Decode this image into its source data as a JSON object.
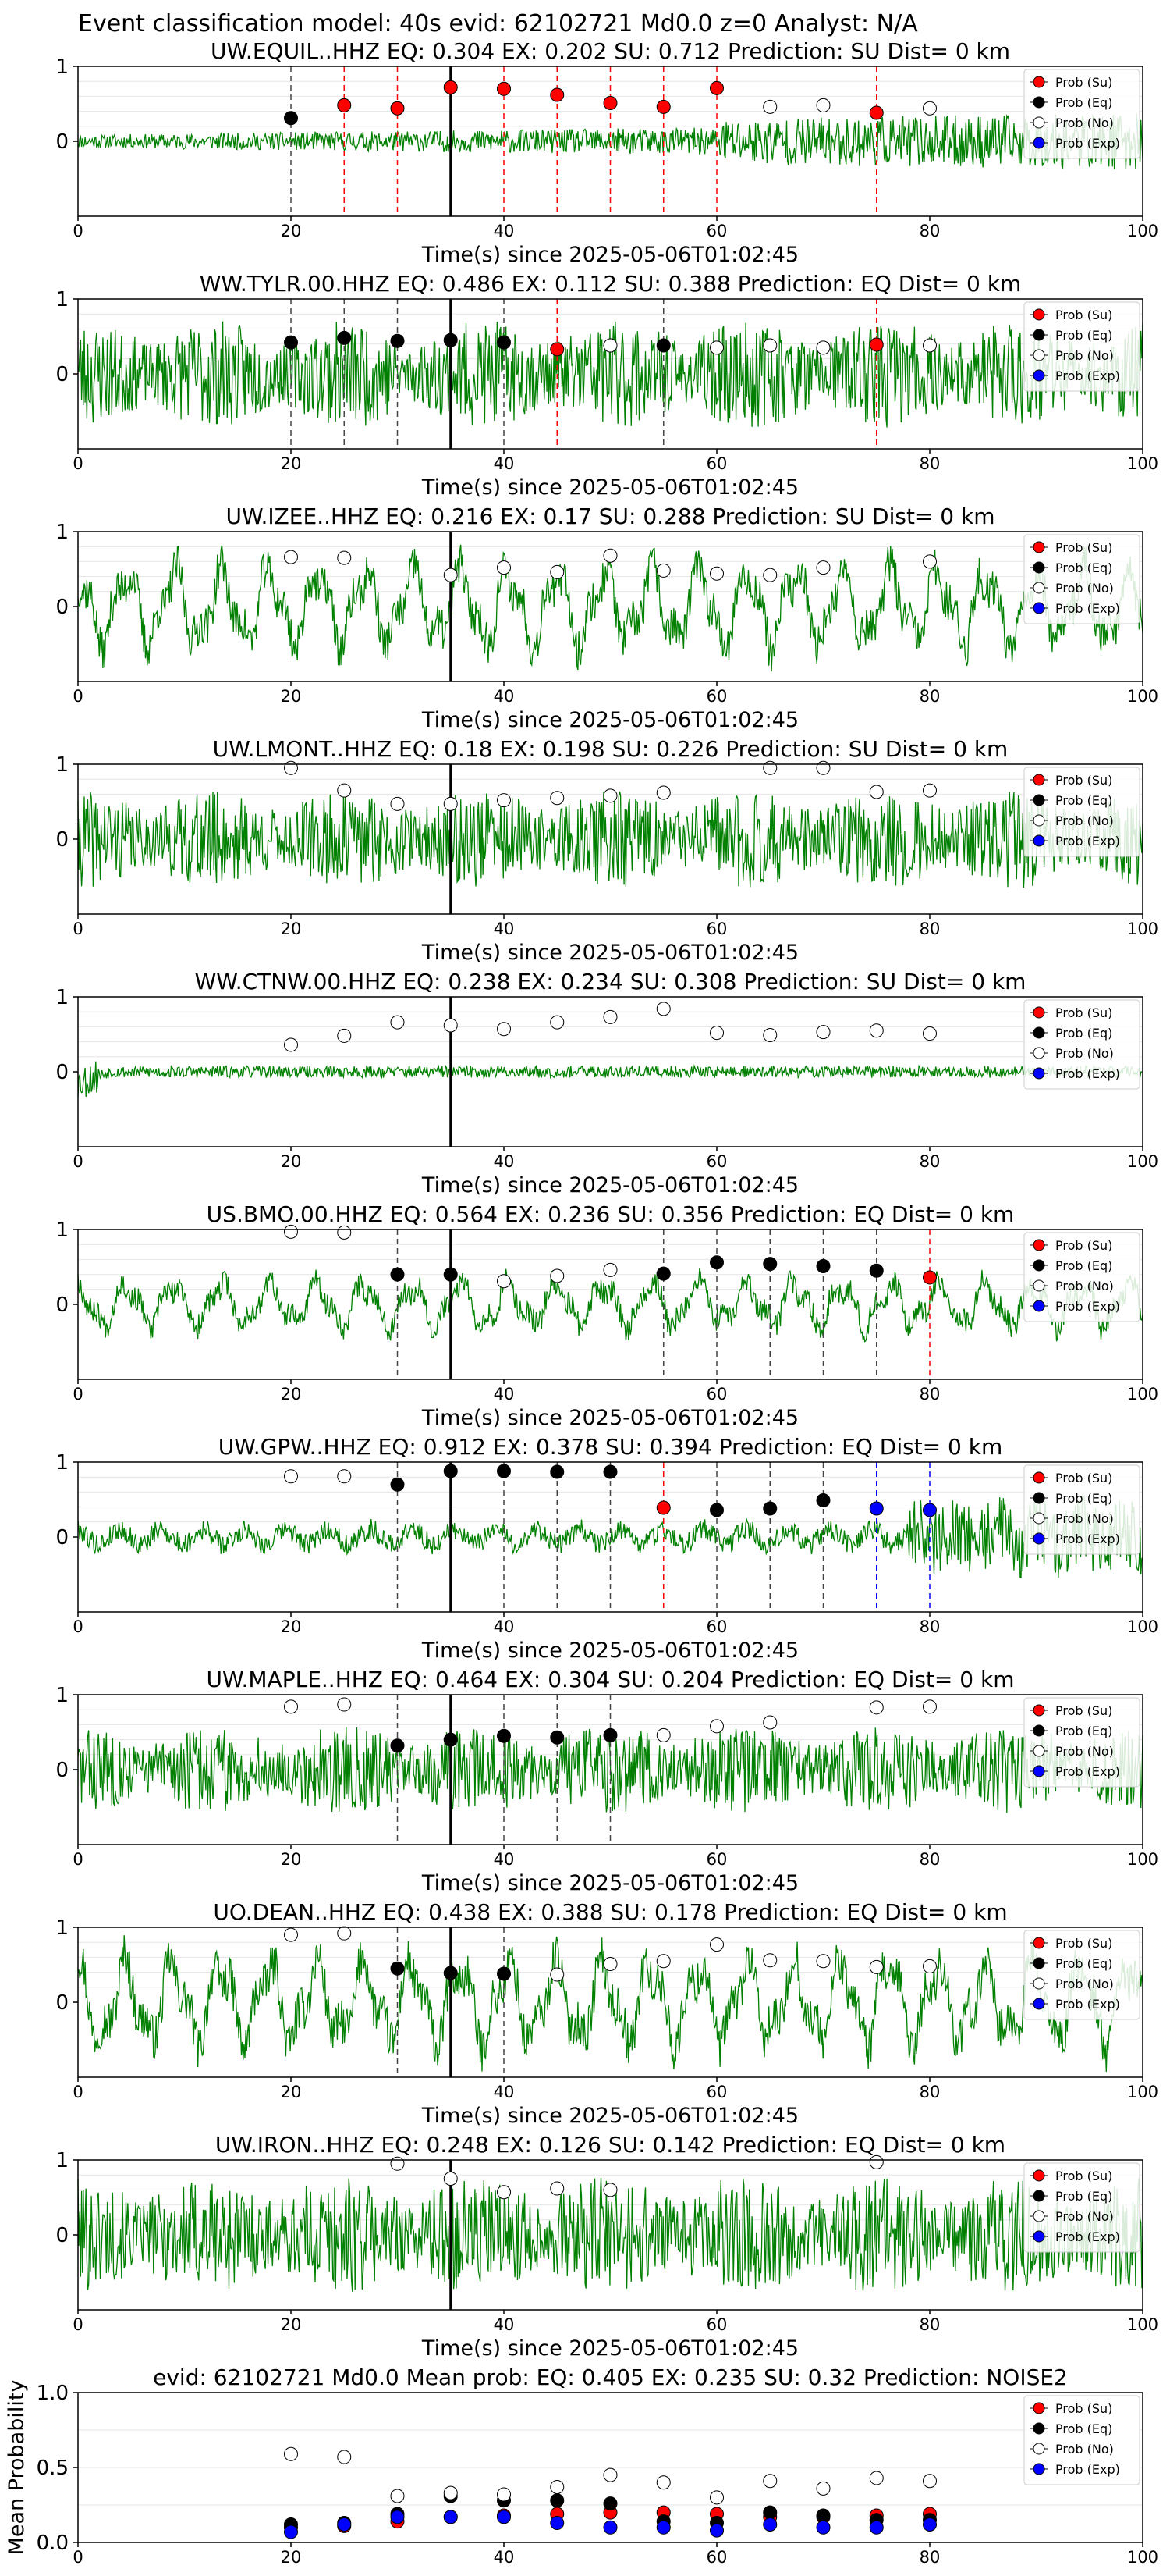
{
  "page_title": "Event classification model: 40s evid: 62102721 Md0.0 z=0 Analyst: N/A",
  "legend_labels": [
    "Prob (Su)",
    "Prob (Eq)",
    "Prob (No)",
    "Prob (Exp)"
  ],
  "colors": {
    "waveform": "#008000",
    "su": "#ff0000",
    "eq": "#000000",
    "no": "#ffffff",
    "exp": "#0000ff",
    "grid": "#e6e6e6",
    "pick_line": "#000000"
  },
  "chart_data": [
    {
      "type": "line",
      "station": "UW.EQUIL..HHZ",
      "title": "UW.EQUIL..HHZ   EQ: 0.304   EX: 0.202   SU: 0.712   Prediction: SU    Dist= 0 km",
      "xlabel": "Time(s) since 2025-05-06T01:02:45",
      "xlim": [
        0,
        100
      ],
      "ylim": [
        -1,
        1
      ],
      "xticks": [
        "0",
        "20",
        "40",
        "60",
        "80",
        "100"
      ],
      "yticks": [
        "1",
        "0"
      ],
      "pick_time": 35,
      "amplitude": 0.25,
      "style": "burst",
      "seed": 11,
      "markers": [
        {
          "t": 20,
          "p": 0.31,
          "c": "eq"
        },
        {
          "t": 25,
          "p": 0.48,
          "c": "su"
        },
        {
          "t": 30,
          "p": 0.44,
          "c": "su"
        },
        {
          "t": 35,
          "p": 0.72,
          "c": "su"
        },
        {
          "t": 40,
          "p": 0.7,
          "c": "su"
        },
        {
          "t": 45,
          "p": 0.62,
          "c": "su"
        },
        {
          "t": 50,
          "p": 0.51,
          "c": "su"
        },
        {
          "t": 55,
          "p": 0.46,
          "c": "su"
        },
        {
          "t": 60,
          "p": 0.71,
          "c": "su"
        },
        {
          "t": 65,
          "p": 0.46,
          "c": "no"
        },
        {
          "t": 70,
          "p": 0.48,
          "c": "no"
        },
        {
          "t": 75,
          "p": 0.38,
          "c": "su"
        },
        {
          "t": 80,
          "p": 0.44,
          "c": "no"
        }
      ]
    },
    {
      "type": "line",
      "station": "WW.TYLR.00.HHZ",
      "title": "WW.TYLR.00.HHZ   EQ: 0.486   EX: 0.112   SU: 0.388   Prediction: EQ    Dist= 0 km",
      "xlabel": "Time(s) since 2025-05-06T01:02:45",
      "xlim": [
        0,
        100
      ],
      "ylim": [
        -1,
        1
      ],
      "xticks": [
        "0",
        "20",
        "40",
        "60",
        "80",
        "100"
      ],
      "yticks": [
        "1",
        "0"
      ],
      "pick_time": 35,
      "amplitude": 0.55,
      "style": "noisy",
      "seed": 23,
      "markers": [
        {
          "t": 20,
          "p": 0.42,
          "c": "eq"
        },
        {
          "t": 25,
          "p": 0.48,
          "c": "eq"
        },
        {
          "t": 30,
          "p": 0.44,
          "c": "eq"
        },
        {
          "t": 35,
          "p": 0.45,
          "c": "eq"
        },
        {
          "t": 40,
          "p": 0.42,
          "c": "eq"
        },
        {
          "t": 45,
          "p": 0.33,
          "c": "su"
        },
        {
          "t": 50,
          "p": 0.38,
          "c": "no"
        },
        {
          "t": 55,
          "p": 0.38,
          "c": "eq"
        },
        {
          "t": 60,
          "p": 0.35,
          "c": "no"
        },
        {
          "t": 65,
          "p": 0.38,
          "c": "no"
        },
        {
          "t": 70,
          "p": 0.35,
          "c": "no"
        },
        {
          "t": 75,
          "p": 0.39,
          "c": "su"
        },
        {
          "t": 80,
          "p": 0.38,
          "c": "no"
        }
      ]
    },
    {
      "type": "line",
      "station": "UW.IZEE..HHZ",
      "title": "UW.IZEE..HHZ   EQ: 0.216   EX: 0.17   SU: 0.288   Prediction: SU    Dist= 0 km",
      "xlabel": "Time(s) since 2025-05-06T01:02:45",
      "xlim": [
        0,
        100
      ],
      "ylim": [
        -1,
        1
      ],
      "xticks": [
        "0",
        "20",
        "40",
        "60",
        "80",
        "100"
      ],
      "yticks": [
        "1",
        "0"
      ],
      "pick_time": 35,
      "amplitude": 0.6,
      "style": "wavy",
      "seed": 37,
      "markers": [
        {
          "t": 20,
          "p": 0.66,
          "c": "no"
        },
        {
          "t": 25,
          "p": 0.65,
          "c": "no"
        },
        {
          "t": 35,
          "p": 0.42,
          "c": "no"
        },
        {
          "t": 40,
          "p": 0.52,
          "c": "no"
        },
        {
          "t": 45,
          "p": 0.46,
          "c": "no"
        },
        {
          "t": 50,
          "p": 0.68,
          "c": "no"
        },
        {
          "t": 55,
          "p": 0.48,
          "c": "no"
        },
        {
          "t": 60,
          "p": 0.44,
          "c": "no"
        },
        {
          "t": 65,
          "p": 0.42,
          "c": "no"
        },
        {
          "t": 70,
          "p": 0.52,
          "c": "no"
        },
        {
          "t": 80,
          "p": 0.6,
          "c": "no"
        }
      ]
    },
    {
      "type": "line",
      "station": "UW.LMONT..HHZ",
      "title": "UW.LMONT..HHZ   EQ: 0.18   EX: 0.198   SU: 0.226   Prediction: SU    Dist= 0 km",
      "xlabel": "Time(s) since 2025-05-06T01:02:45",
      "xlim": [
        0,
        100
      ],
      "ylim": [
        -1,
        1
      ],
      "xticks": [
        "0",
        "20",
        "40",
        "60",
        "80",
        "100"
      ],
      "yticks": [
        "1",
        "0"
      ],
      "pick_time": 35,
      "amplitude": 0.5,
      "style": "noisy",
      "seed": 41,
      "markers": [
        {
          "t": 20,
          "p": 0.95,
          "c": "no"
        },
        {
          "t": 25,
          "p": 0.65,
          "c": "no"
        },
        {
          "t": 30,
          "p": 0.47,
          "c": "no"
        },
        {
          "t": 35,
          "p": 0.47,
          "c": "no"
        },
        {
          "t": 40,
          "p": 0.52,
          "c": "no"
        },
        {
          "t": 45,
          "p": 0.55,
          "c": "no"
        },
        {
          "t": 50,
          "p": 0.58,
          "c": "no"
        },
        {
          "t": 55,
          "p": 0.62,
          "c": "no"
        },
        {
          "t": 65,
          "p": 0.95,
          "c": "no"
        },
        {
          "t": 70,
          "p": 0.95,
          "c": "no"
        },
        {
          "t": 75,
          "p": 0.63,
          "c": "no"
        },
        {
          "t": 80,
          "p": 0.65,
          "c": "no"
        }
      ]
    },
    {
      "type": "line",
      "station": "WW.CTNW.00.HHZ",
      "title": "WW.CTNW.00.HHZ   EQ: 0.238   EX: 0.234   SU: 0.308   Prediction: SU    Dist= 0 km",
      "xlabel": "Time(s) since 2025-05-06T01:02:45",
      "xlim": [
        0,
        100
      ],
      "ylim": [
        -1,
        1
      ],
      "xticks": [
        "0",
        "20",
        "40",
        "60",
        "80",
        "100"
      ],
      "yticks": [
        "1",
        "0"
      ],
      "pick_time": 35,
      "amplitude": 0.08,
      "style": "quiet",
      "seed": 53,
      "markers": [
        {
          "t": 20,
          "p": 0.36,
          "c": "no"
        },
        {
          "t": 25,
          "p": 0.48,
          "c": "no"
        },
        {
          "t": 30,
          "p": 0.66,
          "c": "no"
        },
        {
          "t": 35,
          "p": 0.62,
          "c": "no"
        },
        {
          "t": 40,
          "p": 0.57,
          "c": "no"
        },
        {
          "t": 45,
          "p": 0.66,
          "c": "no"
        },
        {
          "t": 50,
          "p": 0.73,
          "c": "no"
        },
        {
          "t": 55,
          "p": 0.84,
          "c": "no"
        },
        {
          "t": 60,
          "p": 0.52,
          "c": "no"
        },
        {
          "t": 65,
          "p": 0.49,
          "c": "no"
        },
        {
          "t": 70,
          "p": 0.53,
          "c": "no"
        },
        {
          "t": 75,
          "p": 0.55,
          "c": "no"
        },
        {
          "t": 80,
          "p": 0.51,
          "c": "no"
        }
      ]
    },
    {
      "type": "line",
      "station": "US.BMO.00.HHZ",
      "title": "US.BMO.00.HHZ   EQ: 0.564   EX: 0.236   SU: 0.356   Prediction: EQ    Dist= 0 km",
      "xlabel": "Time(s) since 2025-05-06T01:02:45",
      "xlim": [
        0,
        100
      ],
      "ylim": [
        -1,
        1
      ],
      "xticks": [
        "0",
        "20",
        "40",
        "60",
        "80",
        "100"
      ],
      "yticks": [
        "1",
        "0"
      ],
      "pick_time": 35,
      "amplitude": 0.35,
      "style": "wavy",
      "seed": 67,
      "markers": [
        {
          "t": 20,
          "p": 0.97,
          "c": "no"
        },
        {
          "t": 25,
          "p": 0.96,
          "c": "no"
        },
        {
          "t": 30,
          "p": 0.4,
          "c": "eq"
        },
        {
          "t": 35,
          "p": 0.4,
          "c": "eq"
        },
        {
          "t": 40,
          "p": 0.31,
          "c": "no"
        },
        {
          "t": 45,
          "p": 0.38,
          "c": "no"
        },
        {
          "t": 50,
          "p": 0.46,
          "c": "no"
        },
        {
          "t": 55,
          "p": 0.41,
          "c": "eq"
        },
        {
          "t": 60,
          "p": 0.56,
          "c": "eq"
        },
        {
          "t": 65,
          "p": 0.54,
          "c": "eq"
        },
        {
          "t": 70,
          "p": 0.51,
          "c": "eq"
        },
        {
          "t": 75,
          "p": 0.45,
          "c": "eq"
        },
        {
          "t": 80,
          "p": 0.36,
          "c": "su"
        }
      ]
    },
    {
      "type": "line",
      "station": "UW.GPW..HHZ",
      "title": "UW.GPW..HHZ   EQ: 0.912   EX: 0.378   SU: 0.394   Prediction: EQ    Dist= 0 km",
      "xlabel": "Time(s) since 2025-05-06T01:02:45",
      "xlim": [
        0,
        100
      ],
      "ylim": [
        -1,
        1
      ],
      "xticks": [
        "0",
        "20",
        "40",
        "60",
        "80",
        "100"
      ],
      "yticks": [
        "1",
        "0"
      ],
      "pick_time": 35,
      "amplitude": 0.25,
      "style": "late",
      "seed": 79,
      "markers": [
        {
          "t": 20,
          "p": 0.81,
          "c": "no"
        },
        {
          "t": 25,
          "p": 0.81,
          "c": "no"
        },
        {
          "t": 30,
          "p": 0.7,
          "c": "eq"
        },
        {
          "t": 35,
          "p": 0.88,
          "c": "eq"
        },
        {
          "t": 40,
          "p": 0.88,
          "c": "eq"
        },
        {
          "t": 45,
          "p": 0.87,
          "c": "eq"
        },
        {
          "t": 50,
          "p": 0.87,
          "c": "eq"
        },
        {
          "t": 55,
          "p": 0.39,
          "c": "su"
        },
        {
          "t": 60,
          "p": 0.36,
          "c": "eq"
        },
        {
          "t": 65,
          "p": 0.38,
          "c": "eq"
        },
        {
          "t": 70,
          "p": 0.49,
          "c": "eq"
        },
        {
          "t": 75,
          "p": 0.38,
          "c": "exp"
        },
        {
          "t": 80,
          "p": 0.36,
          "c": "exp"
        }
      ]
    },
    {
      "type": "line",
      "station": "UW.MAPLE..HHZ",
      "title": "UW.MAPLE..HHZ   EQ: 0.464   EX: 0.304   SU: 0.204   Prediction: EQ    Dist= 0 km",
      "xlabel": "Time(s) since 2025-05-06T01:02:45",
      "xlim": [
        0,
        100
      ],
      "ylim": [
        -1,
        1
      ],
      "xticks": [
        "0",
        "20",
        "40",
        "60",
        "80",
        "100"
      ],
      "yticks": [
        "1",
        "0"
      ],
      "pick_time": 35,
      "amplitude": 0.45,
      "style": "noisy",
      "seed": 83,
      "markers": [
        {
          "t": 20,
          "p": 0.84,
          "c": "no"
        },
        {
          "t": 25,
          "p": 0.87,
          "c": "no"
        },
        {
          "t": 30,
          "p": 0.32,
          "c": "eq"
        },
        {
          "t": 35,
          "p": 0.4,
          "c": "eq"
        },
        {
          "t": 40,
          "p": 0.45,
          "c": "eq"
        },
        {
          "t": 45,
          "p": 0.43,
          "c": "eq"
        },
        {
          "t": 50,
          "p": 0.46,
          "c": "eq"
        },
        {
          "t": 55,
          "p": 0.46,
          "c": "no"
        },
        {
          "t": 60,
          "p": 0.58,
          "c": "no"
        },
        {
          "t": 65,
          "p": 0.63,
          "c": "no"
        },
        {
          "t": 75,
          "p": 0.83,
          "c": "no"
        },
        {
          "t": 80,
          "p": 0.84,
          "c": "no"
        }
      ]
    },
    {
      "type": "line",
      "station": "UO.DEAN..HHZ",
      "title": "UO.DEAN..HHZ   EQ: 0.438   EX: 0.388   SU: 0.178   Prediction: EQ    Dist= 0 km",
      "xlabel": "Time(s) since 2025-05-06T01:02:45",
      "xlim": [
        0,
        100
      ],
      "ylim": [
        -1,
        1
      ],
      "xticks": [
        "0",
        "20",
        "40",
        "60",
        "80",
        "100"
      ],
      "yticks": [
        "1",
        "0"
      ],
      "pick_time": 35,
      "amplitude": 0.65,
      "style": "wavy",
      "seed": 97,
      "markers": [
        {
          "t": 20,
          "p": 0.9,
          "c": "no"
        },
        {
          "t": 25,
          "p": 0.92,
          "c": "no"
        },
        {
          "t": 30,
          "p": 0.45,
          "c": "eq"
        },
        {
          "t": 35,
          "p": 0.39,
          "c": "eq"
        },
        {
          "t": 40,
          "p": 0.38,
          "c": "eq"
        },
        {
          "t": 45,
          "p": 0.37,
          "c": "no"
        },
        {
          "t": 50,
          "p": 0.51,
          "c": "no"
        },
        {
          "t": 55,
          "p": 0.55,
          "c": "no"
        },
        {
          "t": 60,
          "p": 0.77,
          "c": "no"
        },
        {
          "t": 65,
          "p": 0.56,
          "c": "no"
        },
        {
          "t": 70,
          "p": 0.55,
          "c": "no"
        },
        {
          "t": 75,
          "p": 0.47,
          "c": "no"
        },
        {
          "t": 80,
          "p": 0.48,
          "c": "no"
        }
      ]
    },
    {
      "type": "line",
      "station": "UW.IRON..HHZ",
      "title": "UW.IRON..HHZ   EQ: 0.248   EX: 0.126   SU: 0.142   Prediction: EQ    Dist= 0 km",
      "xlabel": "Time(s) since 2025-05-06T01:02:45",
      "xlim": [
        0,
        100
      ],
      "ylim": [
        -1,
        1
      ],
      "xticks": [
        "0",
        "20",
        "40",
        "60",
        "80",
        "100"
      ],
      "yticks": [
        "1",
        "0"
      ],
      "pick_time": 35,
      "amplitude": 0.6,
      "style": "noisy",
      "seed": 101,
      "markers": [
        {
          "t": 30,
          "p": 0.95,
          "c": "no"
        },
        {
          "t": 35,
          "p": 0.75,
          "c": "no"
        },
        {
          "t": 40,
          "p": 0.57,
          "c": "no"
        },
        {
          "t": 45,
          "p": 0.62,
          "c": "no"
        },
        {
          "t": 50,
          "p": 0.6,
          "c": "no"
        },
        {
          "t": 75,
          "p": 0.97,
          "c": "no"
        }
      ]
    },
    {
      "type": "scatter",
      "station": "mean",
      "title": "evid: 62102721   Md0.0   Mean prob:   EQ: 0.405   EX: 0.235   SU: 0.32   Prediction: NOISE2",
      "ylabel": "Mean Probability",
      "xlim": [
        0,
        100
      ],
      "ylim": [
        0,
        1
      ],
      "xticks": [
        "0",
        "20",
        "40",
        "60",
        "80",
        "100"
      ],
      "yticks": [
        "1.0",
        "0.5",
        "0.0"
      ],
      "series": [
        {
          "name": "Prob (Su)",
          "key": "su",
          "x": [
            20,
            25,
            30,
            35,
            40,
            45,
            50,
            55,
            60,
            65,
            70,
            75,
            80
          ],
          "y": [
            0.1,
            0.11,
            0.14,
            0.17,
            0.18,
            0.19,
            0.2,
            0.2,
            0.19,
            0.17,
            0.17,
            0.18,
            0.19
          ]
        },
        {
          "name": "Prob (Eq)",
          "key": "eq",
          "x": [
            20,
            25,
            30,
            35,
            40,
            45,
            50,
            55,
            60,
            65,
            70,
            75,
            80
          ],
          "y": [
            0.12,
            0.13,
            0.19,
            0.31,
            0.28,
            0.28,
            0.26,
            0.14,
            0.13,
            0.2,
            0.18,
            0.15,
            0.15
          ]
        },
        {
          "name": "Prob (No)",
          "key": "no",
          "x": [
            20,
            25,
            30,
            35,
            40,
            45,
            50,
            55,
            60,
            65,
            70,
            75,
            80
          ],
          "y": [
            0.59,
            0.57,
            0.31,
            0.33,
            0.32,
            0.37,
            0.45,
            0.4,
            0.3,
            0.41,
            0.36,
            0.43,
            0.41
          ]
        },
        {
          "name": "Prob (Exp)",
          "key": "exp",
          "x": [
            20,
            25,
            30,
            35,
            40,
            45,
            50,
            55,
            60,
            65,
            70,
            75,
            80
          ],
          "y": [
            0.07,
            0.12,
            0.17,
            0.17,
            0.17,
            0.13,
            0.1,
            0.1,
            0.08,
            0.12,
            0.1,
            0.1,
            0.12
          ]
        }
      ]
    }
  ]
}
